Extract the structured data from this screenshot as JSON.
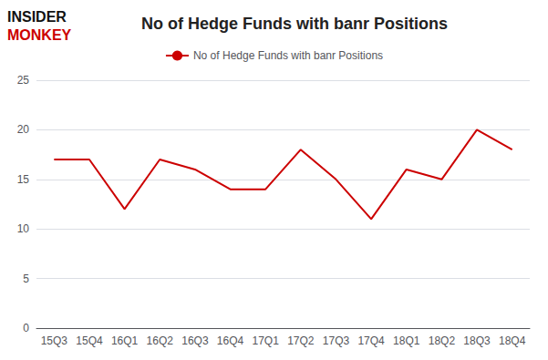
{
  "chart_data": {
    "type": "line",
    "title": "No of Hedge Funds with banr Positions",
    "categories": [
      "15Q3",
      "15Q4",
      "16Q1",
      "16Q2",
      "16Q3",
      "16Q4",
      "17Q1",
      "17Q2",
      "17Q3",
      "17Q4",
      "18Q1",
      "18Q2",
      "18Q3",
      "18Q4"
    ],
    "series": [
      {
        "name": "No of Hedge Funds with banr Positions",
        "color": "#cc0000",
        "values": [
          17,
          17,
          12,
          17,
          16,
          14,
          14,
          18,
          15,
          11,
          16,
          15,
          20,
          18
        ]
      }
    ],
    "ylim": [
      0,
      25
    ],
    "yticks": [
      0,
      5,
      10,
      15,
      20,
      25
    ],
    "grid": true,
    "legend": "top",
    "annotations": [
      "INSIDER",
      "MONKEY"
    ]
  }
}
